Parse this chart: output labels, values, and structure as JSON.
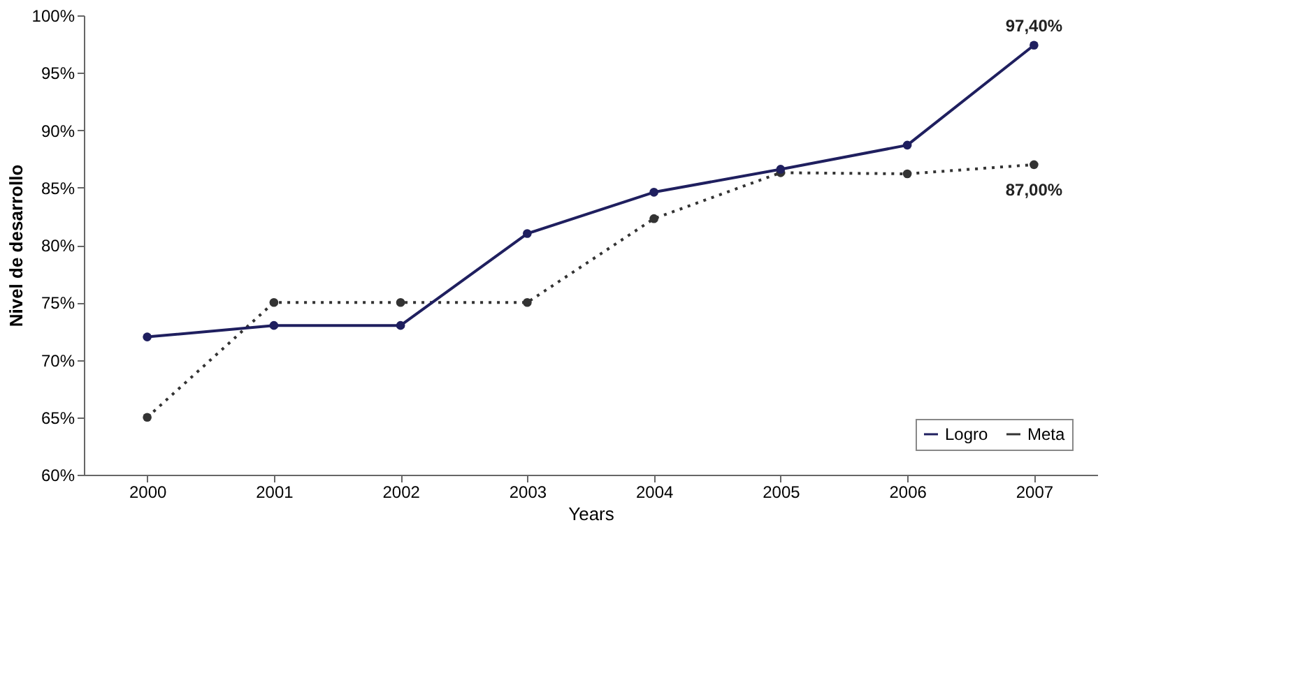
{
  "chart_data": {
    "type": "line",
    "ylabel": "Nivel de desarrollo",
    "xlabel": "Years",
    "categories": [
      "2000",
      "2001",
      "2002",
      "2003",
      "2004",
      "2005",
      "2006",
      "2007"
    ],
    "series": [
      {
        "name": "Logro",
        "color": "#1f1f5f",
        "line_style": "solid",
        "values": [
          72,
          73,
          73,
          81,
          84.6,
          86.6,
          88.7,
          97.4
        ],
        "value_labels": [
          null,
          null,
          null,
          null,
          null,
          null,
          null,
          "97,40%"
        ]
      },
      {
        "name": "Meta",
        "color": "#333333",
        "line_style": "dotted",
        "values": [
          65,
          75,
          75,
          75,
          82.3,
          86.3,
          86.2,
          87.0
        ],
        "value_labels": [
          null,
          null,
          null,
          null,
          null,
          null,
          null,
          "87,00%"
        ]
      }
    ],
    "ylim": [
      60,
      100
    ],
    "yticks": [
      {
        "value": 60,
        "label": "60%"
      },
      {
        "value": 65,
        "label": "65%"
      },
      {
        "value": 70,
        "label": "70%"
      },
      {
        "value": 75,
        "label": "75%"
      },
      {
        "value": 80,
        "label": "80%"
      },
      {
        "value": 85,
        "label": "85%"
      },
      {
        "value": 90,
        "label": "90%"
      },
      {
        "value": 95,
        "label": "95%"
      },
      {
        "value": 100,
        "label": "100%"
      }
    ],
    "grid": false,
    "legend": "bottom right",
    "marker": "circle"
  }
}
